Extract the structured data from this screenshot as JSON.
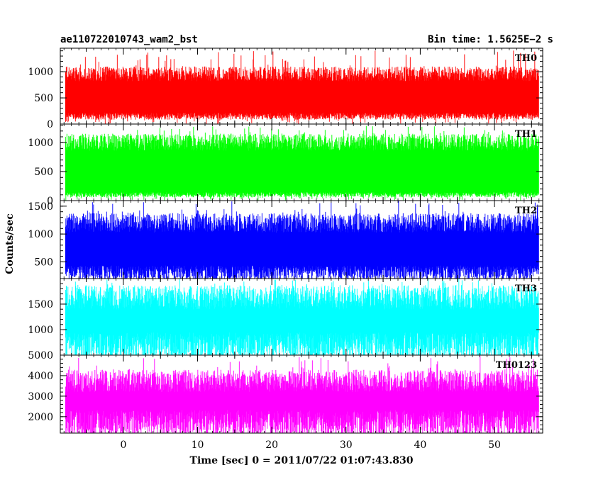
{
  "title_left": "ae110722010743_wam2_bst",
  "title_right": "Bin time: 1.5625E−2 s",
  "chart_data": {
    "type": "line",
    "xlabel": "Time [sec] 0 = 2011/07/22 01:07:43.830",
    "ylabel": "Counts/sec",
    "xlim": [
      -8.5,
      56.5
    ],
    "data_x_range": [
      -7.8,
      56.0
    ],
    "xticks": [
      0,
      10,
      20,
      30,
      40,
      50
    ],
    "panels": [
      {
        "name": "TH0",
        "color": "#ff0000",
        "ylim": [
          0,
          1450
        ],
        "yticks": [
          0,
          500,
          1000
        ],
        "signal": {
          "baseline_low": 150,
          "typical_high": 1000,
          "peak_max": 1420,
          "min": 0
        }
      },
      {
        "name": "TH1",
        "color": "#00ff00",
        "ylim": [
          0,
          1320
        ],
        "yticks": [
          0,
          500,
          1000
        ],
        "signal": {
          "baseline_low": 100,
          "typical_high": 1050,
          "peak_max": 1300,
          "min": 0
        }
      },
      {
        "name": "TH2",
        "color": "#0000ff",
        "ylim": [
          200,
          1600
        ],
        "yticks": [
          500,
          1000,
          1500
        ],
        "signal": {
          "baseline_low": 300,
          "typical_high": 1250,
          "peak_max": 1600,
          "min": 200
        }
      },
      {
        "name": "TH3",
        "color": "#00ffff",
        "ylim": [
          500,
          2000
        ],
        "yticks": [
          1000,
          1500
        ],
        "signal": {
          "baseline_low": 650,
          "typical_high": 1700,
          "peak_max": 2000,
          "min": 500
        }
      },
      {
        "name": "TH0123",
        "color": "#ff00ff",
        "ylim": [
          1200,
          5000
        ],
        "yticks": [
          2000,
          3000,
          4000,
          5000
        ],
        "signal": {
          "baseline_low": 1600,
          "typical_high": 3900,
          "peak_max": 4950,
          "min": 1350
        }
      }
    ]
  }
}
